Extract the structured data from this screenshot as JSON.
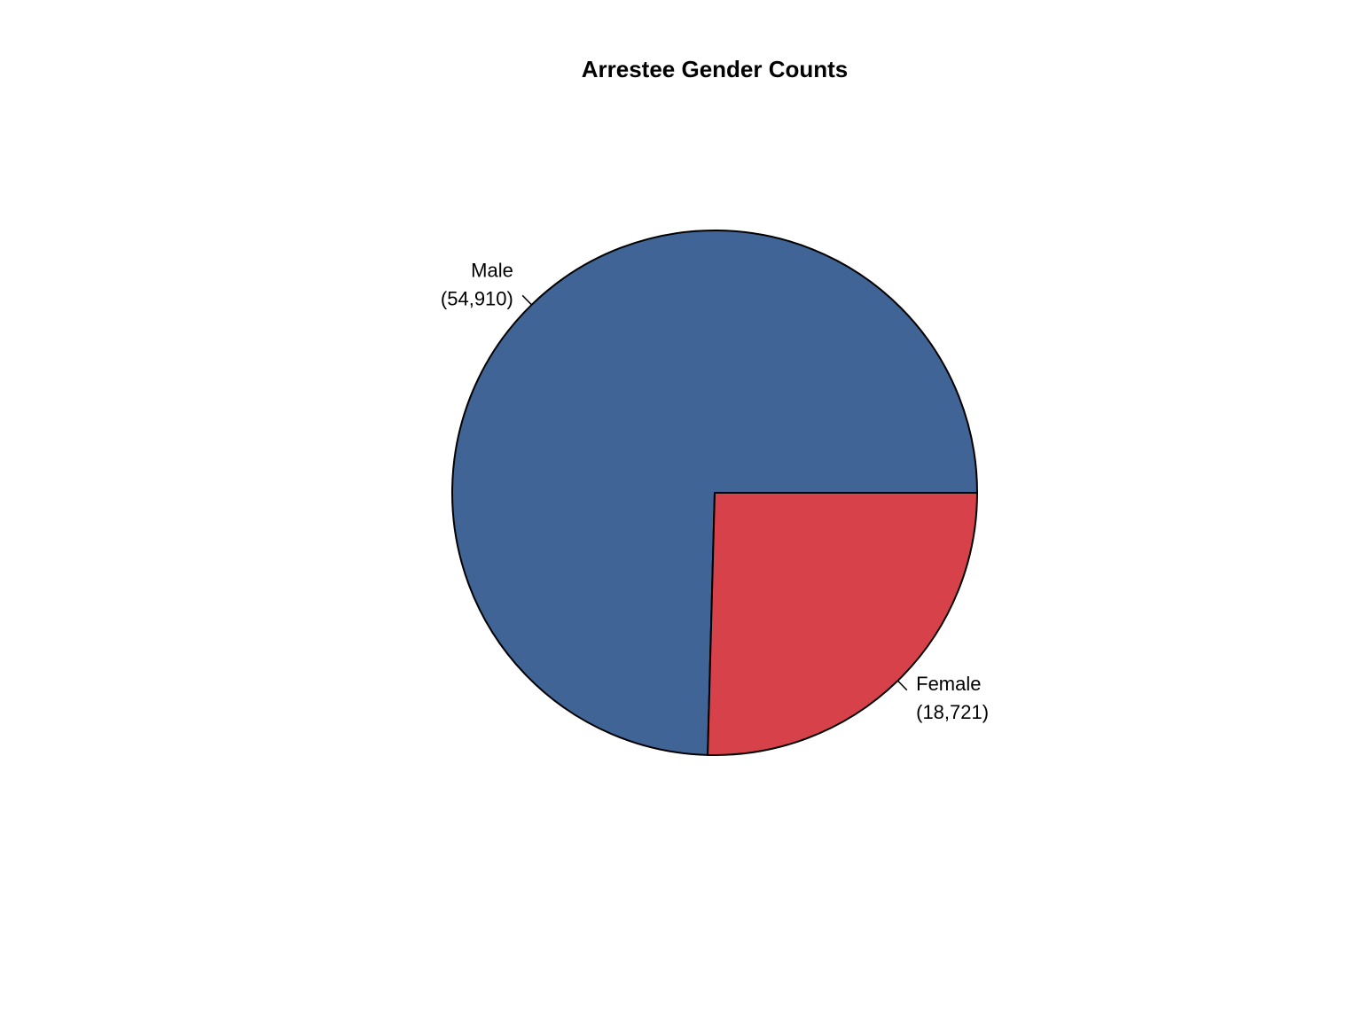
{
  "chart_data": {
    "type": "pie",
    "title": "Arrestee Gender Counts",
    "categories": [
      "Male",
      "Female"
    ],
    "values": [
      54910,
      18721
    ],
    "value_labels": [
      "(54,910)",
      "(18,721)"
    ],
    "colors": [
      "#3f6495",
      "#d7414a"
    ]
  }
}
